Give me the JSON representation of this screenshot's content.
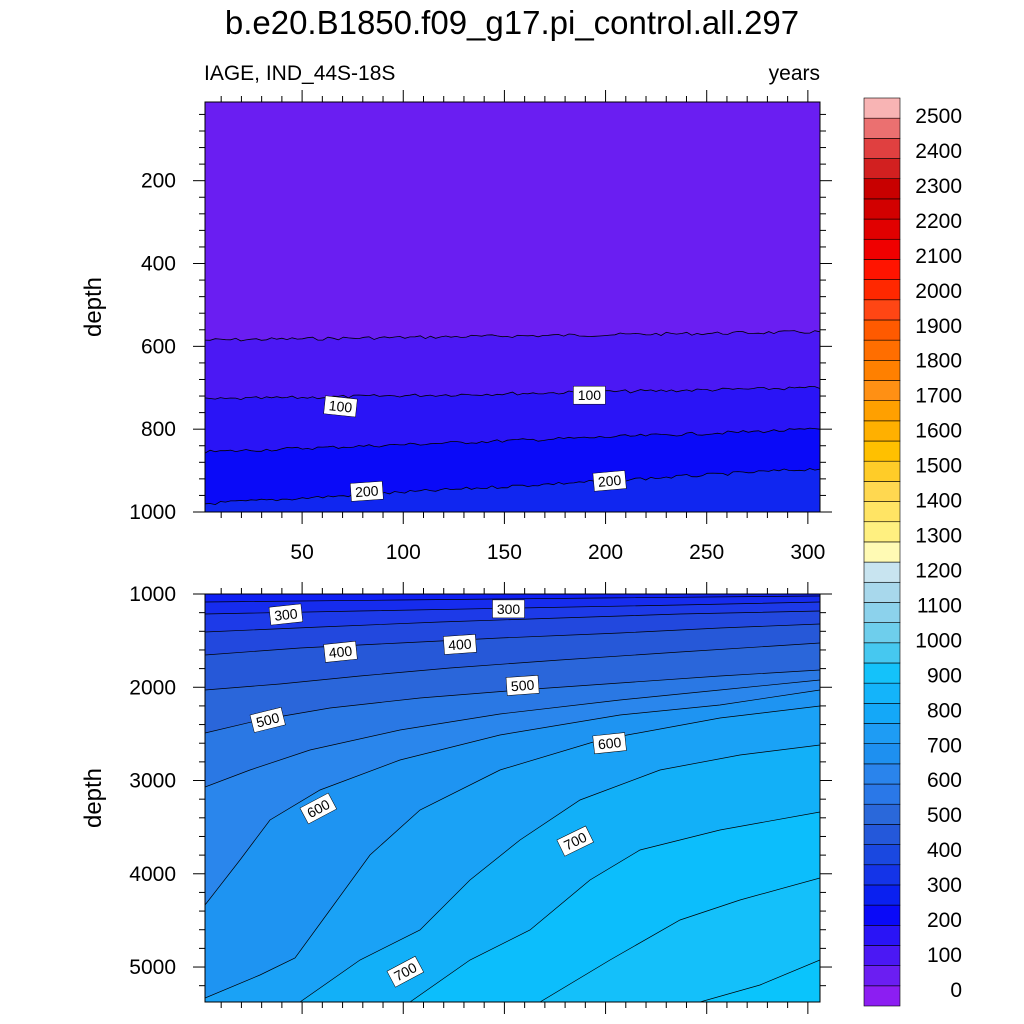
{
  "title": "b.e20.B1850.f09_g17.pi_control.all.297",
  "subtitle_left": "IAGE, IND_44S-18S",
  "subtitle_right": "years",
  "chart_data": {
    "type": "contour",
    "x_ticks": [
      "50",
      "100",
      "150",
      "200",
      "250",
      "300"
    ],
    "x_tick_values": [
      50,
      100,
      150,
      200,
      250,
      300
    ],
    "xlim": [
      2,
      306
    ],
    "colorbar": {
      "levels": [
        0,
        100,
        200,
        300,
        400,
        500,
        600,
        700,
        800,
        900,
        1000,
        1100,
        1200,
        1300,
        1400,
        1500,
        1600,
        1700,
        1800,
        1900,
        2000,
        2100,
        2200,
        2300,
        2400,
        2500
      ],
      "labels": [
        "0",
        "100",
        "200",
        "300",
        "400",
        "500",
        "600",
        "700",
        "800",
        "900",
        "1000",
        "1100",
        "1200",
        "1300",
        "1400",
        "1500",
        "1600",
        "1700",
        "1800",
        "1900",
        "2000",
        "2100",
        "2200",
        "2300",
        "2400",
        "2500"
      ],
      "colors": [
        "#8C1EF2",
        "#6B1EF2",
        "#4B18F4",
        "#2A14F6",
        "#0A0AF8",
        "#0A20F0",
        "#1434E8",
        "#1A48E0",
        "#2458DA",
        "#2A68DA",
        "#2A78E8",
        "#2A84EC",
        "#1E90F0",
        "#1E9CF4",
        "#14A8F8",
        "#14B4FA",
        "#14C2FA",
        "#46C8F0",
        "#6ECEEC",
        "#8CD2EC",
        "#A8D8EC",
        "#C8E4F0",
        "#FFFAB4",
        "#FFF080",
        "#FFE464",
        "#FFD850",
        "#FFCC28",
        "#FFC000",
        "#FFB000",
        "#FFA000",
        "#FF9014",
        "#FF8000",
        "#FF6E00",
        "#FF5A00",
        "#FF4614",
        "#FF2800",
        "#FF1400",
        "#F00000",
        "#E10000",
        "#D20000",
        "#C80000",
        "#D22020",
        "#E04040",
        "#EB7070",
        "#F8B4B4"
      ]
    },
    "panels": [
      {
        "ylabel": "depth",
        "y_ticks": [
          "200",
          "400",
          "600",
          "800",
          "1000"
        ],
        "y_tick_values": [
          200,
          400,
          600,
          800,
          1000
        ],
        "ylim": [
          10,
          1000
        ],
        "bands": [
          {
            "upper": null,
            "depth_start": 585,
            "depth_end": 565,
            "color": "#6A1EF2"
          },
          {
            "upper": 585,
            "depth_start": 728,
            "depth_end": 700,
            "color": "#4B18F4"
          },
          {
            "upper": 728,
            "depth_start": 855,
            "depth_end": 800,
            "color": "#2A14F6"
          },
          {
            "upper": 855,
            "depth_start": 980,
            "depth_end": 895,
            "color": "#0A0AF8"
          },
          {
            "upper": 980,
            "depth_start": null,
            "depth_end": null,
            "color": "#1026F0"
          }
        ],
        "contour_labels": [
          {
            "text": "100",
            "x": 69,
            "depth": 745,
            "angle": 6
          },
          {
            "text": "100",
            "x": 192,
            "depth": 718,
            "angle": 0
          },
          {
            "text": "200",
            "x": 82,
            "depth": 950,
            "angle": -4
          },
          {
            "text": "200",
            "x": 202,
            "depth": 925,
            "angle": -5
          }
        ]
      },
      {
        "ylabel": "depth",
        "y_ticks": [
          "1000",
          "2000",
          "3000",
          "4000",
          "5000"
        ],
        "y_tick_values": [
          1000,
          2000,
          3000,
          4000,
          5000
        ],
        "ylim": [
          1000,
          5375
        ],
        "contour_labels": [
          {
            "text": "300",
            "x": 42,
            "depth": 1220,
            "angle": -6
          },
          {
            "text": "300",
            "x": 152,
            "depth": 1160,
            "angle": 0
          },
          {
            "text": "400",
            "x": 69,
            "depth": 1620,
            "angle": -6
          },
          {
            "text": "400",
            "x": 128,
            "depth": 1540,
            "angle": -4
          },
          {
            "text": "500",
            "x": 33,
            "depth": 2350,
            "angle": -14
          },
          {
            "text": "500",
            "x": 159,
            "depth": 1980,
            "angle": -4
          },
          {
            "text": "500",
            "x": 159,
            "depth": 1980,
            "angle": 0
          },
          {
            "text": "600",
            "x": 58,
            "depth": 3300,
            "angle": -28
          },
          {
            "text": "600",
            "x": 202,
            "depth": 2600,
            "angle": -6
          },
          {
            "text": "700",
            "x": 185,
            "depth": 3650,
            "angle": -26
          },
          {
            "text": "700",
            "x": 101,
            "depth": 5050,
            "angle": -28
          }
        ]
      }
    ]
  }
}
